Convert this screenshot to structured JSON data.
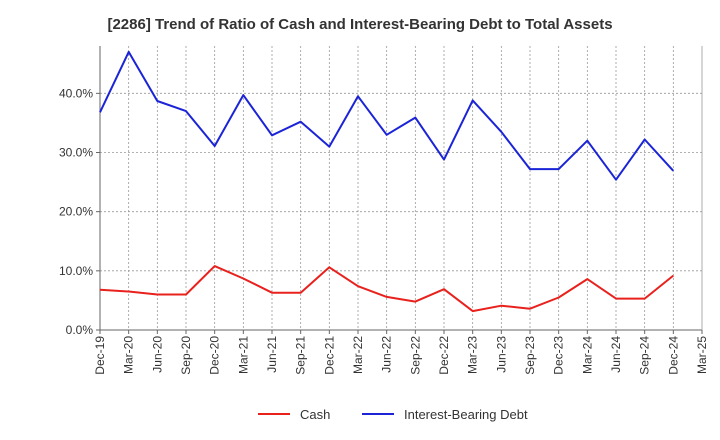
{
  "chart_data": {
    "type": "line",
    "title": "[2286]  Trend of Ratio of Cash and Interest-Bearing Debt to Total Assets",
    "xlabel": "",
    "ylabel": "",
    "ylim": [
      0,
      48
    ],
    "y_ticks": [
      0,
      10,
      20,
      30,
      40
    ],
    "y_tick_labels": [
      "0.0%",
      "10.0%",
      "20.0%",
      "30.0%",
      "40.0%"
    ],
    "x_tick_labels": [
      "Dec-19",
      "Mar-20",
      "Jun-20",
      "Sep-20",
      "Dec-20",
      "Mar-21",
      "Jun-21",
      "Sep-21",
      "Dec-21",
      "Mar-22",
      "Jun-22",
      "Sep-22",
      "Dec-22",
      "Mar-23",
      "Jun-23",
      "Sep-23",
      "Dec-23",
      "Mar-24",
      "Jun-24",
      "Sep-24",
      "Dec-24",
      "Mar-25"
    ],
    "x": [
      "Dec-19",
      "Mar-20",
      "Jun-20",
      "Sep-20",
      "Dec-20",
      "Mar-21",
      "Jun-21",
      "Sep-21",
      "Dec-21",
      "Mar-22",
      "Jun-22",
      "Sep-22",
      "Dec-22",
      "Mar-23",
      "Jun-23",
      "Sep-23",
      "Dec-23",
      "Mar-24",
      "Jun-24",
      "Sep-24",
      "Dec-24"
    ],
    "series": [
      {
        "name": "Cash",
        "color": "#e8211d",
        "values": [
          6.8,
          6.5,
          6.0,
          6.0,
          10.8,
          8.7,
          6.3,
          6.3,
          10.6,
          7.4,
          5.6,
          4.8,
          6.9,
          3.2,
          4.1,
          3.6,
          5.5,
          8.6,
          5.3,
          5.3,
          9.2
        ]
      },
      {
        "name": "Interest-Bearing Debt",
        "color": "#1b24d6",
        "values": [
          36.8,
          47.0,
          38.7,
          37.0,
          31.1,
          39.7,
          32.9,
          35.2,
          31.0,
          39.5,
          33.0,
          35.9,
          28.8,
          38.8,
          33.5,
          27.2,
          27.2,
          32.0,
          25.4,
          32.2,
          26.9
        ]
      }
    ],
    "grid": true,
    "legend": "bottom"
  }
}
